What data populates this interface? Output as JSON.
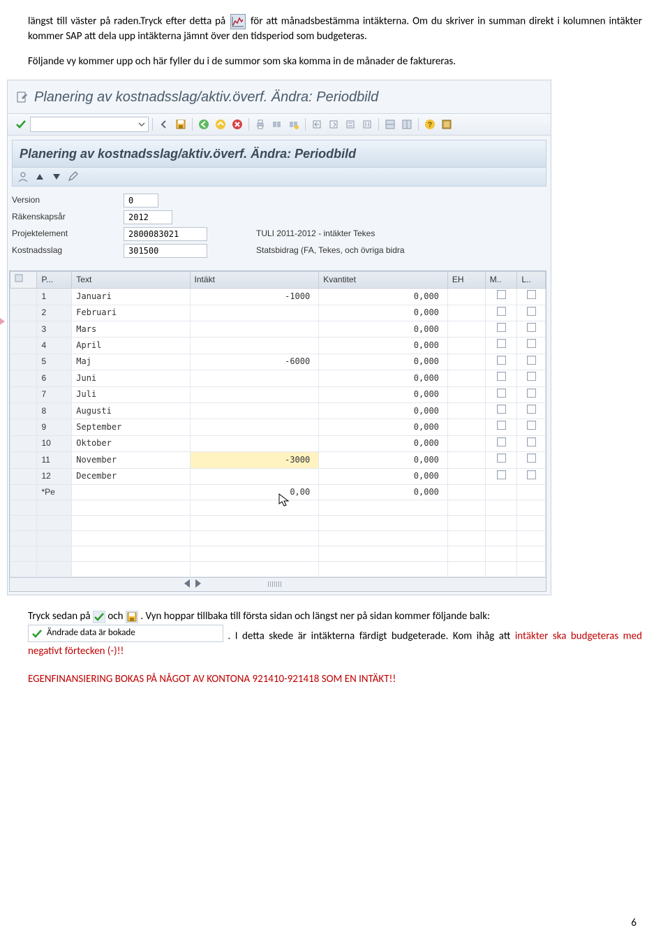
{
  "doc": {
    "para1_a": "längst till väster på raden.Tryck efter detta på ",
    "para1_b": " för att månadsbestämma intäkterna. Om du skriver in summan direkt i kolumnen intäkter kommer SAP att dela upp intäkterna jämnt över den tidsperiod som budgeteras.",
    "para2": "Följande vy kommer upp och här fyller du i de summor som ska komma in de månader de faktureras.",
    "para3_a": "Tryck sedan på ",
    "para3_b": " och ",
    "para3_c": ". Vyn hoppar tillbaka till första sidan och längst ner på sidan kommer följande balk: ",
    "para3_d": ". I detta skede är intäkterna färdigt budgeterade. Kom ihåg att ",
    "para3_red": "intäkter ska budgeteras med negativt förtecken (-)!!",
    "para4": "EGENFINANSIERING BOKAS PÅ NÅGOT AV KONTONA 921410-921418 SOM EN INTÄKT!!",
    "status_text": "Ändrade data är bokade",
    "page_number": "6"
  },
  "sap": {
    "title": "Planering av kostnadsslag/aktiv.överf. Ändra: Periodbild",
    "subtitle": "Planering av kostnadsslag/aktiv.överf. Ändra: Periodbild",
    "fields": {
      "version_label": "Version",
      "version_value": "0",
      "year_label": "Räkenskapsår",
      "year_value": "2012",
      "proj_label": "Projektelement",
      "proj_value": "2800083021",
      "proj_desc": "TULI 2011-2012 - intäkter Tekes",
      "cost_label": "Kostnadsslag",
      "cost_value": "301500",
      "cost_desc": "Statsbidrag (FA, Tekes, och övriga bidra"
    },
    "grid": {
      "headers": {
        "p": "P...",
        "text": "Text",
        "intakt": "Intäkt",
        "kvant": "Kvantitet",
        "eh": "EH",
        "m": "M..",
        "l": "L.."
      },
      "rows": [
        {
          "n": "1",
          "text": "Januari",
          "intakt": "-1000",
          "kvant": "0,000",
          "chk": true
        },
        {
          "n": "2",
          "text": "Februari",
          "intakt": "",
          "kvant": "0,000",
          "chk": true
        },
        {
          "n": "3",
          "text": "Mars",
          "intakt": "",
          "kvant": "0,000",
          "chk": true
        },
        {
          "n": "4",
          "text": "April",
          "intakt": "",
          "kvant": "0,000",
          "chk": true
        },
        {
          "n": "5",
          "text": "Maj",
          "intakt": "-6000",
          "kvant": "0,000",
          "chk": true
        },
        {
          "n": "6",
          "text": "Juni",
          "intakt": "",
          "kvant": "0,000",
          "chk": true
        },
        {
          "n": "7",
          "text": "Juli",
          "intakt": "",
          "kvant": "0,000",
          "chk": true
        },
        {
          "n": "8",
          "text": "Augusti",
          "intakt": "",
          "kvant": "0,000",
          "chk": true
        },
        {
          "n": "9",
          "text": "September",
          "intakt": "",
          "kvant": "0,000",
          "chk": true
        },
        {
          "n": "10",
          "text": "Oktober",
          "intakt": "",
          "kvant": "0,000",
          "chk": true
        },
        {
          "n": "11",
          "text": "November",
          "intakt": "-3000",
          "kvant": "0,000",
          "chk": true,
          "hl": true
        },
        {
          "n": "12",
          "text": "December",
          "intakt": "",
          "kvant": "0,000",
          "chk": true
        },
        {
          "n": "*Pe",
          "text": "",
          "intakt": "0,00",
          "kvant": "0,000",
          "chk": false
        }
      ],
      "empty_rows": 5
    }
  }
}
